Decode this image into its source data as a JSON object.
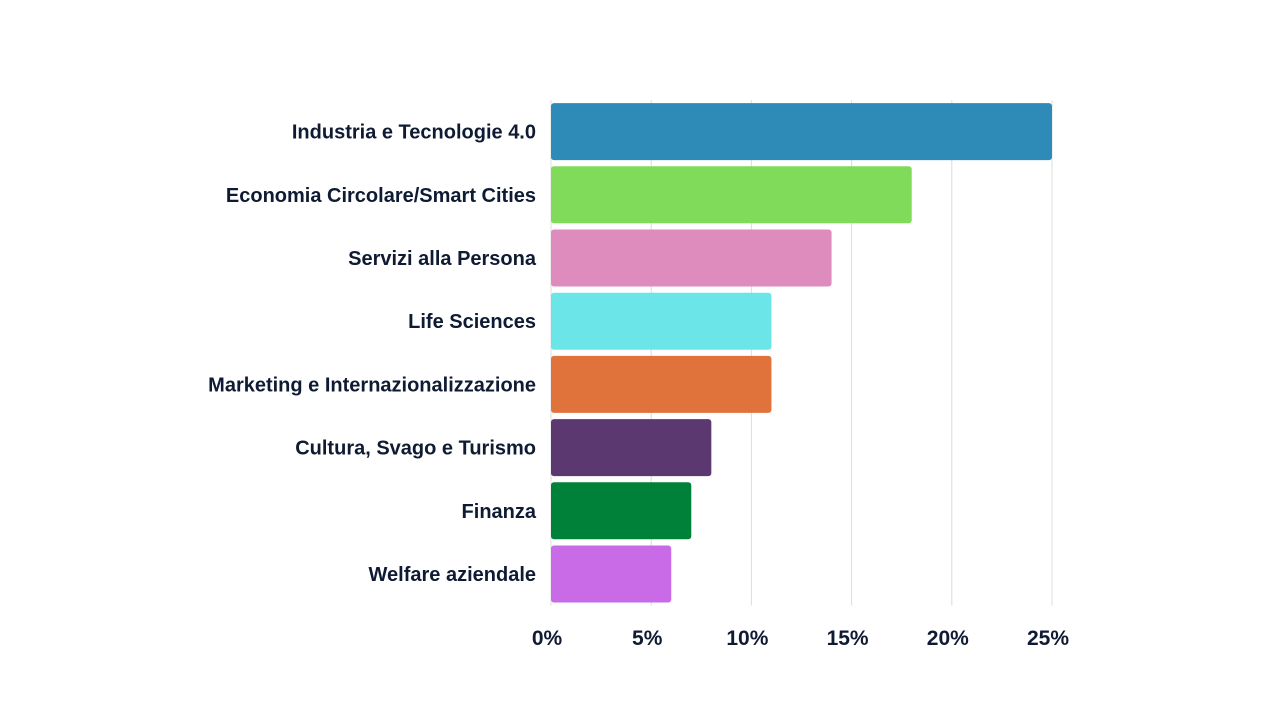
{
  "chart_data": {
    "type": "bar",
    "orientation": "horizontal",
    "categories": [
      "Industria e Tecnologie 4.0",
      "Economia Circolare/Smart Cities",
      "Servizi alla Persona",
      "Life Sciences",
      "Marketing e Internazionalizzazione",
      "Cultura, Svago e Turismo",
      "Finanza",
      "Welfare aziendale"
    ],
    "values": [
      25,
      18,
      14,
      11,
      11,
      8,
      7,
      6
    ],
    "colors": [
      "#2e8bb8",
      "#80db5a",
      "#de8bbd",
      "#6ce5e8",
      "#e0733c",
      "#5c3870",
      "#008139",
      "#c96ae6"
    ],
    "xlim": [
      0,
      25
    ],
    "x_ticks": [
      "0%",
      "5%",
      "10%",
      "15%",
      "20%",
      "25%"
    ],
    "x_tick_values": [
      0,
      5,
      10,
      15,
      20,
      25
    ],
    "grid": true,
    "legend": "none"
  }
}
